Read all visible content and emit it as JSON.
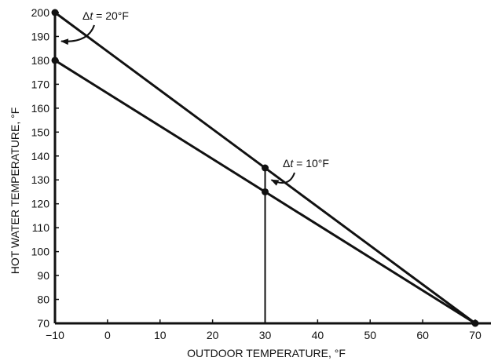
{
  "chart_data": {
    "type": "line",
    "title": "",
    "xlabel": "OUTDOOR TEMPERATURE, °F",
    "ylabel": "HOT WATER TEMPERATURE, °F",
    "xlim": [
      -10,
      70
    ],
    "ylim": [
      70,
      200
    ],
    "x_ticks": [
      -10,
      0,
      10,
      20,
      30,
      40,
      50,
      60,
      70
    ],
    "y_ticks": [
      70,
      80,
      90,
      100,
      110,
      120,
      130,
      140,
      150,
      160,
      170,
      180,
      190,
      200
    ],
    "grid": false,
    "legend": "none",
    "series": [
      {
        "points": [
          [
            -10,
            200
          ],
          [
            70,
            70
          ]
        ]
      },
      {
        "points": [
          [
            -10,
            180
          ],
          [
            70,
            70
          ]
        ]
      }
    ],
    "markers": [
      [
        -10,
        200
      ],
      [
        -10,
        180
      ],
      [
        30,
        135
      ],
      [
        30,
        125
      ],
      [
        70,
        70
      ]
    ],
    "reference_lines": [
      {
        "x": 30,
        "y_from": 70,
        "y_to": 135
      }
    ],
    "annotations": [
      {
        "delta": "Δ",
        "var": "t",
        "rest": " = 20°F",
        "arrow_to": [
          -10,
          188
        ]
      },
      {
        "delta": "Δ",
        "var": "t",
        "rest": " = 10°F",
        "arrow_to": [
          30,
          130
        ]
      }
    ],
    "colors": {
      "line": "#111111",
      "axis": "#111111",
      "background": "#ffffff"
    }
  }
}
